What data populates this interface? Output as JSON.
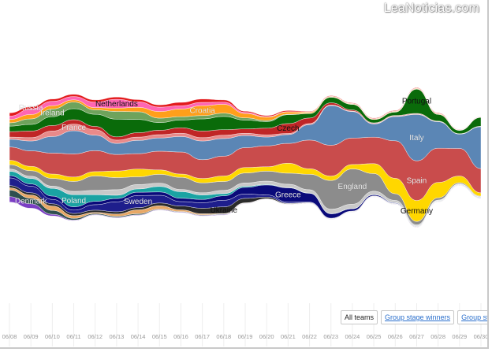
{
  "watermark": "LeaNoticias.com",
  "buttons": [
    {
      "label": "All teams",
      "active": true
    },
    {
      "label": "Group stage winners",
      "active": false
    },
    {
      "label": "Group stage out",
      "active": false
    }
  ],
  "chart_data": {
    "type": "area",
    "x": [
      "06/08",
      "06/09",
      "06/10",
      "06/11",
      "06/12",
      "06/13",
      "06/14",
      "06/15",
      "06/16",
      "06/17",
      "06/18",
      "06/19",
      "06/20",
      "06/21",
      "06/22",
      "06/23",
      "06/24",
      "06/25",
      "06/26",
      "06/27",
      "06/28",
      "06/29",
      "06/30"
    ],
    "series": [
      {
        "name": "",
        "color": "#7b3fc4",
        "values": [
          0.5,
          0.4,
          0.15,
          0.05,
          0.05,
          0.05,
          0.05,
          0.05,
          0.05,
          0.05,
          0.05,
          0.03,
          0.02,
          0.02,
          0.02,
          0.02,
          0.02,
          0.02,
          0.02,
          0.02,
          0.02,
          0.02,
          0.02
        ]
      },
      {
        "name": "Denmark",
        "color": "#2f4f4f",
        "values": [
          0.6,
          0.5,
          0.35,
          0.15,
          0.1,
          0.1,
          0.1,
          0.05,
          0.05,
          0.05,
          0.05,
          0.03,
          0.02,
          0.02,
          0.02,
          0.02,
          0.02,
          0.02,
          0.02,
          0.02,
          0.02,
          0.02,
          0.02
        ]
      },
      {
        "name": "",
        "color": "#e8a866",
        "values": [
          0.2,
          0.3,
          0.4,
          0.25,
          0.1,
          0.2,
          0.35,
          0.3,
          0.15,
          0.1,
          0.05,
          0.03,
          0.02,
          0.02,
          0.02,
          0.02,
          0.02,
          0.02,
          0.02,
          0.02,
          0.02,
          0.02,
          0.02
        ]
      },
      {
        "name": "Ukraine",
        "color": "#2b2b2b",
        "values": [
          0.2,
          0.2,
          0.2,
          0.2,
          0.2,
          0.2,
          0.2,
          0.25,
          0.35,
          0.5,
          0.6,
          0.4,
          0.15,
          0.05,
          0.03,
          0.02,
          0.02,
          0.02,
          0.02,
          0.02,
          0.02,
          0.02,
          0.02
        ]
      },
      {
        "name": "Sweden",
        "color": "#1e1e8c",
        "values": [
          0.7,
          0.6,
          0.4,
          0.3,
          0.5,
          0.9,
          1.1,
          0.7,
          0.4,
          0.5,
          0.6,
          0.4,
          0.2,
          0.1,
          0.05,
          0.02,
          0.02,
          0.02,
          0.02,
          0.02,
          0.02,
          0.02,
          0.02
        ]
      },
      {
        "name": "Greece",
        "color": "#0a0a7a",
        "values": [
          0.2,
          0.2,
          0.3,
          0.3,
          0.3,
          0.3,
          0.3,
          0.3,
          0.3,
          0.3,
          0.4,
          0.6,
          0.9,
          1.3,
          0.8,
          0.4,
          0.2,
          0.1,
          0.05,
          0.02,
          0.02,
          0.02,
          0.02
        ]
      },
      {
        "name": "Poland",
        "color": "#1aa3a3",
        "values": [
          0.4,
          0.5,
          0.7,
          1.1,
          0.6,
          0.3,
          0.3,
          0.5,
          0.6,
          0.4,
          0.2,
          0.1,
          0.05,
          0.03,
          0.02,
          0.02,
          0.02,
          0.02,
          0.02,
          0.02,
          0.02,
          0.02,
          0.02
        ]
      },
      {
        "name": "",
        "color": "#c9c9c9",
        "values": [
          0.2,
          0.2,
          0.2,
          0.3,
          0.4,
          0.5,
          0.4,
          0.3,
          0.2,
          0.2,
          0.3,
          0.3,
          0.3,
          0.3,
          0.3,
          0.4,
          0.4,
          0.3,
          0.2,
          0.1,
          0.05,
          0.02,
          0.02
        ]
      },
      {
        "name": "England",
        "color": "#8c8c8c",
        "values": [
          0.4,
          0.5,
          0.7,
          0.9,
          1.3,
          1.1,
          0.7,
          0.8,
          1.1,
          0.9,
          0.8,
          0.9,
          0.9,
          1.0,
          1.4,
          2.6,
          3.2,
          1.6,
          0.6,
          0.3,
          0.2,
          0.1,
          0.05
        ]
      },
      {
        "name": "Germany",
        "color": "#ffd700",
        "values": [
          0.4,
          0.4,
          0.4,
          0.4,
          0.4,
          0.6,
          0.7,
          0.4,
          0.3,
          0.4,
          0.5,
          0.5,
          0.4,
          0.9,
          0.5,
          0.4,
          0.4,
          0.9,
          1.4,
          1.9,
          1.4,
          0.6,
          0.3
        ]
      },
      {
        "name": "Spain",
        "color": "#c94c4c",
        "values": [
          1.2,
          1.4,
          1.9,
          2.1,
          1.9,
          1.5,
          1.4,
          1.7,
          2.0,
          1.7,
          1.8,
          1.8,
          1.9,
          1.8,
          2.6,
          2.8,
          2.4,
          2.4,
          3.4,
          3.6,
          3.1,
          2.5,
          2.2
        ]
      },
      {
        "name": "Italy",
        "color": "#5b86b5",
        "values": [
          0.7,
          0.9,
          1.5,
          2.1,
          1.4,
          1.0,
          1.2,
          1.2,
          1.4,
          1.7,
          1.6,
          1.1,
          0.8,
          0.8,
          1.4,
          3.6,
          2.4,
          1.2,
          2.2,
          4.2,
          2.4,
          1.3,
          3.8
        ]
      },
      {
        "name": "France",
        "color": "#e88a8a",
        "values": [
          0.2,
          0.3,
          0.5,
          0.6,
          0.5,
          0.3,
          0.3,
          0.3,
          0.3,
          0.3,
          0.3,
          0.2,
          0.2,
          0.1,
          0.1,
          0.05,
          0.05,
          0.05,
          0.05,
          0.05,
          0.03,
          0.02,
          0.02
        ]
      },
      {
        "name": "Czech",
        "color": "#c02626",
        "values": [
          0.5,
          0.6,
          0.5,
          0.4,
          0.3,
          0.3,
          0.4,
          0.4,
          0.5,
          0.6,
          0.5,
          0.4,
          0.6,
          0.9,
          0.5,
          0.2,
          0.1,
          0.05,
          0.05,
          0.05,
          0.03,
          0.02,
          0.02
        ]
      },
      {
        "name": "Portugal",
        "color": "#0a6b0a",
        "values": [
          0.5,
          0.6,
          0.8,
          1.0,
          1.1,
          1.6,
          1.2,
          0.7,
          0.7,
          1.1,
          1.2,
          0.8,
          0.6,
          0.8,
          0.4,
          0.5,
          0.5,
          0.3,
          0.3,
          2.2,
          0.6,
          0.3,
          0.8
        ]
      },
      {
        "name": "Ireland",
        "color": "#6ea35c",
        "values": [
          0.3,
          0.5,
          0.7,
          0.6,
          0.4,
          0.7,
          0.7,
          0.4,
          0.3,
          0.3,
          0.3,
          0.2,
          0.1,
          0.05,
          0.03,
          0.02,
          0.02,
          0.02,
          0.02,
          0.02,
          0.02,
          0.02,
          0.02
        ]
      },
      {
        "name": "Croatia",
        "color": "#ff9f1a",
        "values": [
          0.3,
          0.4,
          0.3,
          0.2,
          0.2,
          0.3,
          0.4,
          0.6,
          0.7,
          0.9,
          0.8,
          0.4,
          0.3,
          0.2,
          0.1,
          0.05,
          0.05,
          0.05,
          0.05,
          0.05,
          0.05,
          0.02,
          0.02
        ]
      },
      {
        "name": "Netherlands",
        "color": "#ff66b3",
        "values": [
          0.3,
          0.5,
          0.4,
          0.3,
          0.5,
          0.8,
          0.5,
          0.4,
          0.3,
          0.3,
          0.2,
          0.1,
          0.05,
          0.03,
          0.02,
          0.02,
          0.02,
          0.02,
          0.02,
          0.02,
          0.02,
          0.02,
          0.02
        ]
      },
      {
        "name": "Russia",
        "color": "#e31a1c",
        "values": [
          0.3,
          0.2,
          0.2,
          0.2,
          0.2,
          0.2,
          0.2,
          0.2,
          0.3,
          0.3,
          0.2,
          0.1,
          0.1,
          0.1,
          0.05,
          0.05,
          0.05,
          0.05,
          0.05,
          0.05,
          0.05,
          0.02,
          0.02
        ]
      }
    ]
  }
}
